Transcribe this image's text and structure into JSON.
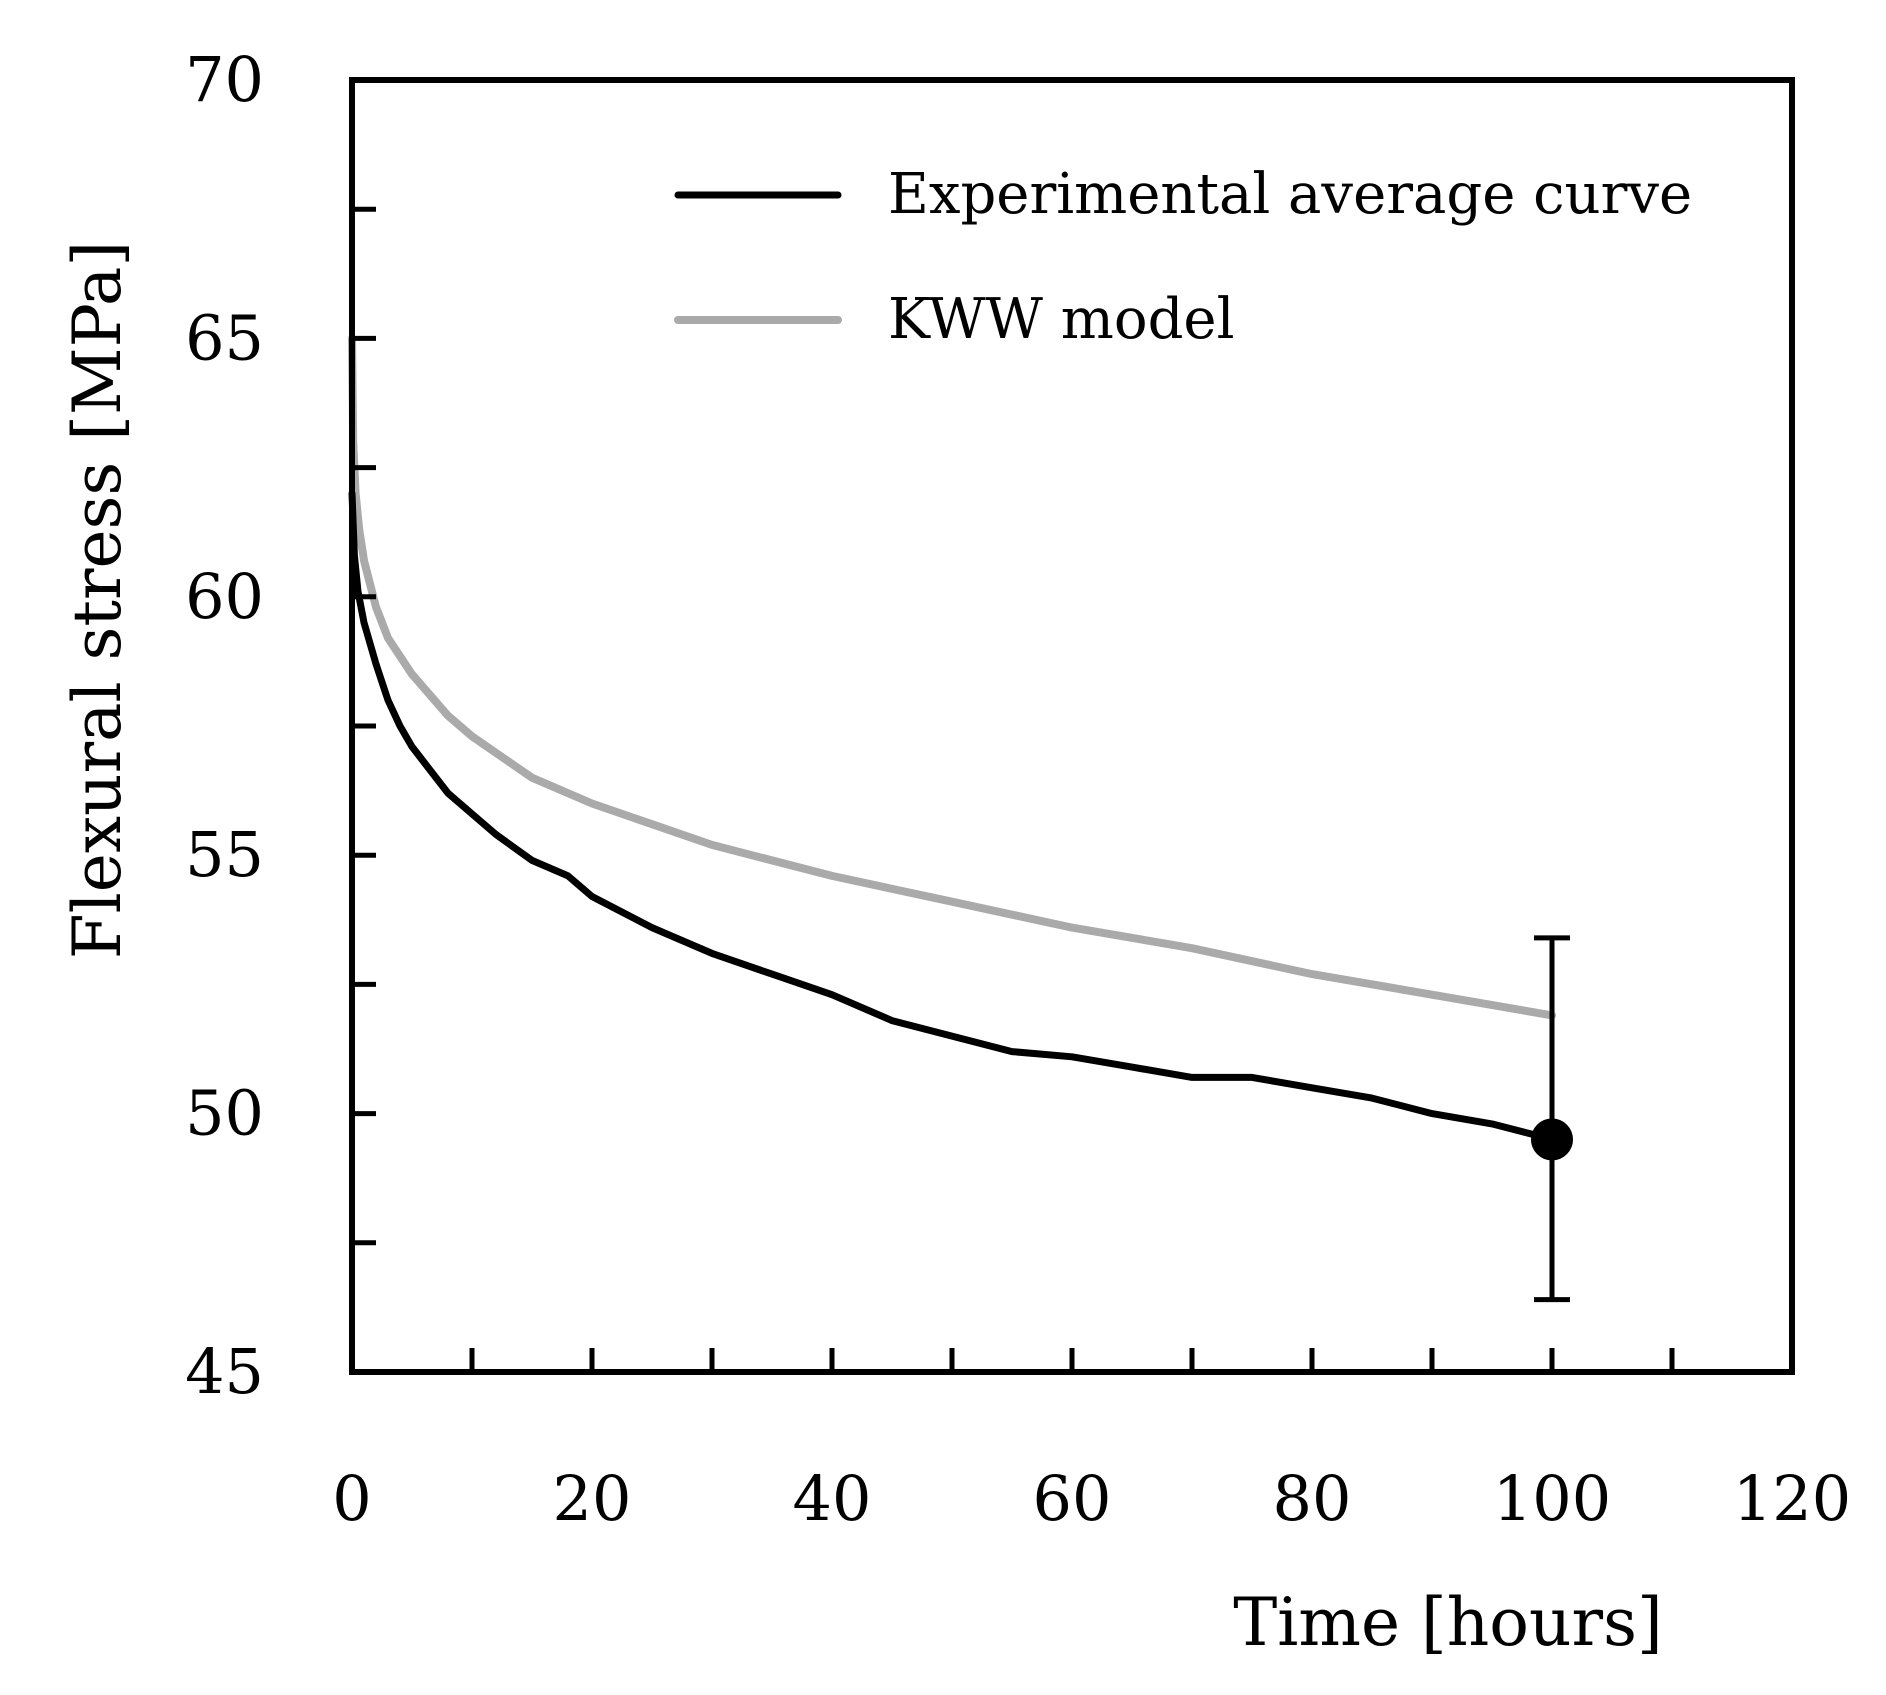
{
  "chart_data": {
    "type": "line",
    "title": "",
    "xlabel": "Time [hours]",
    "ylabel": "Flexural stress [MPa]",
    "xlim": [
      0,
      120
    ],
    "ylim": [
      45,
      70
    ],
    "xticks": [
      0,
      20,
      40,
      60,
      80,
      100,
      120
    ],
    "xtick_labels": [
      "0",
      "20",
      "40",
      "60",
      "80",
      "100",
      "120"
    ],
    "x_minor_ticks": [
      10,
      30,
      50,
      70,
      90,
      110
    ],
    "yticks": [
      45,
      50,
      55,
      60,
      65,
      70
    ],
    "ytick_labels": [
      "45",
      "50",
      "55",
      "60",
      "65",
      "70"
    ],
    "y_minor_ticks": [
      47.5,
      52.5,
      57.5,
      62.5,
      67.5
    ],
    "grid": false,
    "legend_position": "top-right",
    "series": [
      {
        "name": "Experimental average curve",
        "color": "#000000",
        "x": [
          0,
          0.2,
          0.5,
          1,
          2,
          3,
          4,
          5,
          6,
          8,
          10,
          12,
          15,
          18,
          20,
          25,
          30,
          35,
          40,
          45,
          50,
          55,
          60,
          65,
          70,
          75,
          80,
          85,
          90,
          95,
          100
        ],
        "y": [
          62.0,
          60.8,
          60.1,
          59.5,
          58.7,
          58.0,
          57.5,
          57.1,
          56.8,
          56.2,
          55.8,
          55.4,
          54.9,
          54.6,
          54.2,
          53.6,
          53.1,
          52.7,
          52.3,
          51.8,
          51.5,
          51.2,
          51.1,
          50.9,
          50.7,
          50.7,
          50.5,
          50.3,
          50.0,
          49.8,
          49.5
        ]
      },
      {
        "name": "KWW model",
        "color": "#aaaaaa",
        "x": [
          0,
          0.1,
          0.3,
          0.6,
          1,
          2,
          3,
          5,
          8,
          10,
          15,
          20,
          25,
          30,
          40,
          50,
          60,
          70,
          80,
          90,
          100
        ],
        "y": [
          65.0,
          63.0,
          62.0,
          61.3,
          60.7,
          59.8,
          59.2,
          58.5,
          57.7,
          57.3,
          56.5,
          56.0,
          55.6,
          55.2,
          54.6,
          54.1,
          53.6,
          53.2,
          52.7,
          52.3,
          51.9
        ]
      }
    ],
    "end_point": {
      "x": 100,
      "y": 49.5,
      "error_low": 46.4,
      "error_high": 53.4,
      "color": "#000000"
    }
  }
}
